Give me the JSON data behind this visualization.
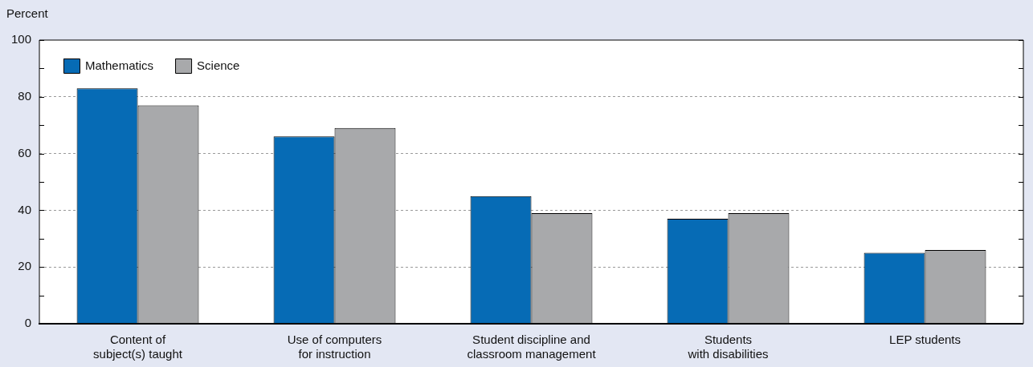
{
  "chart_data": {
    "type": "bar",
    "ylabel": "Percent",
    "categories": [
      "Content of\nsubject(s) taught",
      "Use of computers\nfor instruction",
      "Student discipline and\nclassroom management",
      "Students\nwith disabilities",
      "LEP students"
    ],
    "series": [
      {
        "name": "Mathematics",
        "color": "#066bb5",
        "values": [
          83,
          66,
          45,
          37,
          25
        ]
      },
      {
        "name": "Science",
        "color": "#a8a9ab",
        "values": [
          77,
          69,
          39,
          39,
          26
        ]
      }
    ],
    "ylim": [
      0,
      100
    ],
    "yticks": [
      0,
      {
        "value": 10,
        "label": null
      },
      20,
      {
        "value": 30,
        "label": null
      },
      40,
      {
        "value": 50,
        "label": null
      },
      60,
      {
        "value": 70,
        "label": null
      },
      80,
      {
        "value": 90,
        "label": null
      },
      100
    ],
    "grid": "y",
    "legend": "top left"
  }
}
